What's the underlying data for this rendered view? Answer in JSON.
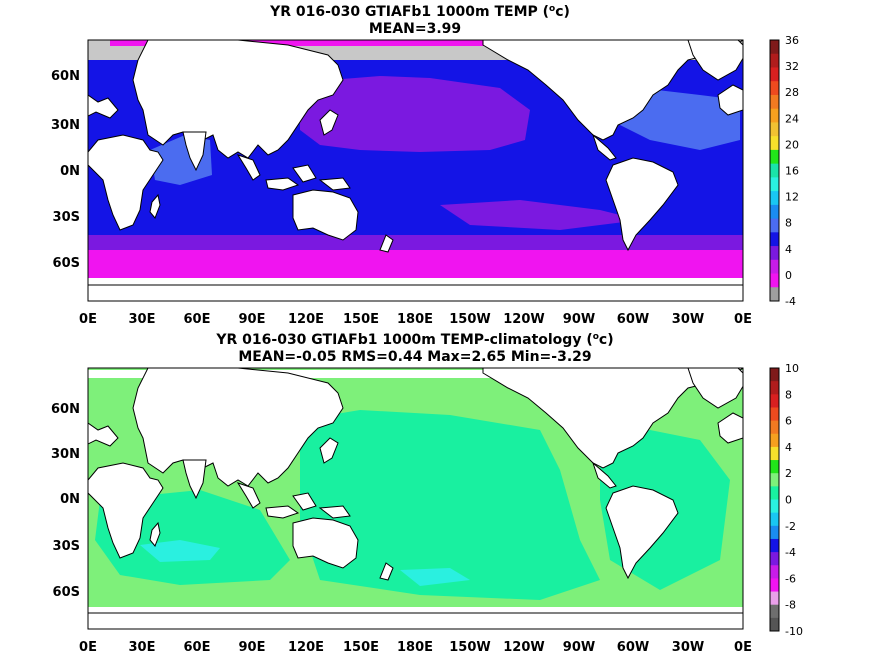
{
  "panels": [
    {
      "title_line1": "YR 016-030 GTIAFb1 1000m TEMP (",
      "title_unit_sup": "o",
      "title_unit_tail": "c)",
      "title_line2": "MEAN=3.99",
      "colorbar": {
        "labels": [
          "36",
          "32",
          "28",
          "24",
          "20",
          "16",
          "12",
          "8",
          "4",
          "0",
          "-4"
        ],
        "colors": [
          "#7f1a1a",
          "#b01c1c",
          "#d92020",
          "#ee4a1f",
          "#f27a21",
          "#f6a01f",
          "#f1c232",
          "#f7e02b",
          "#21e51a",
          "#1ae3a9",
          "#2af0e0",
          "#19c7f2",
          "#1a8cf0",
          "#4b6cf0",
          "#1414e6",
          "#7b19e0",
          "#c81ce8",
          "#f014f0",
          "#9e9e9e"
        ]
      }
    },
    {
      "title_line1": "YR 016-030 GTIAFb1 1000m TEMP-climatology (",
      "title_unit_sup": "o",
      "title_unit_tail": "c)",
      "title_line2": "MEAN=-0.05   RMS=0.44   Max=2.65   Min=-3.29",
      "colorbar": {
        "labels": [
          "10",
          "8",
          "6",
          "4",
          "2",
          "0",
          "-2",
          "-4",
          "-6",
          "-8",
          "-10"
        ],
        "colors": [
          "#7f1a1a",
          "#b01c1c",
          "#d92020",
          "#ee4a1f",
          "#f27a21",
          "#f6a01f",
          "#f7e02b",
          "#21e51a",
          "#7ef07a",
          "#19f0a0",
          "#2af0e0",
          "#19c7f2",
          "#1a8cf0",
          "#1414e6",
          "#7b19e0",
          "#c81ce8",
          "#f014f0",
          "#eaa0ea",
          "#6e6e6e",
          "#555555"
        ]
      }
    }
  ],
  "lat_labels": [
    "60N",
    "30N",
    "0N",
    "30S",
    "60S"
  ],
  "lon_labels": [
    "0E",
    "30E",
    "60E",
    "90E",
    "120E",
    "150E",
    "180E",
    "150W",
    "120W",
    "90W",
    "60W",
    "30W",
    "0E"
  ]
}
